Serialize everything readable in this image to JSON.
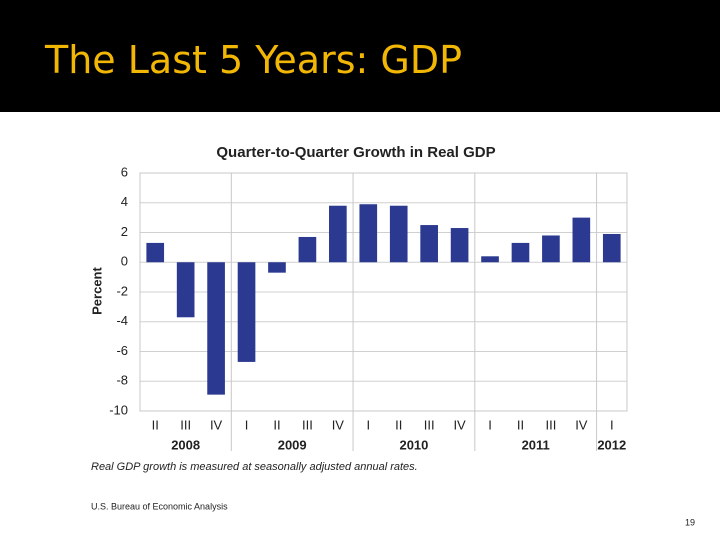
{
  "slide_title": "The Last 5 Years:  GDP",
  "chart_data": {
    "type": "bar",
    "title": "Quarter-to-Quarter Growth in Real GDP",
    "y_label": "Percent",
    "categories": [
      "II",
      "III",
      "IV",
      "I",
      "II",
      "III",
      "IV",
      "I",
      "II",
      "III",
      "IV",
      "I",
      "II",
      "III",
      "IV",
      "I"
    ],
    "years": [
      "2008",
      "2009",
      "2010",
      "2011",
      "2012"
    ],
    "values": [
      1.3,
      -3.7,
      -8.9,
      -6.7,
      -0.7,
      1.7,
      3.8,
      3.9,
      3.8,
      2.5,
      2.3,
      0.4,
      1.3,
      1.8,
      3.0,
      1.9
    ],
    "color": "#2b3990",
    "ylim": [
      -10,
      6
    ],
    "yticks": [
      -10,
      -8,
      -6,
      -4,
      -2,
      0,
      2,
      4,
      6
    ],
    "grid": true
  },
  "footnote": "Real GDP growth is measured at seasonally adjusted annual rates.",
  "source": "U.S. Bureau of Economic Analysis",
  "page_number": "19"
}
